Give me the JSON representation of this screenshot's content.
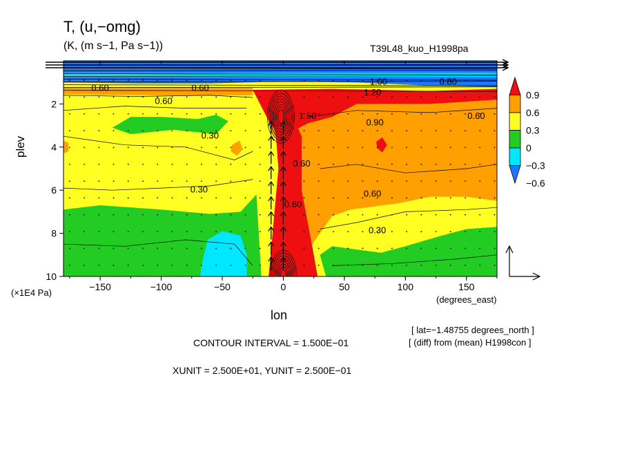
{
  "header": {
    "title": "T, (u,−omg)",
    "units": "(K, (m s−1, Pa s−1))",
    "run_id": "T39L48_kuo_H1998pa"
  },
  "footer": {
    "contour_interval": "CONTOUR INTERVAL = 1.500E−01",
    "xyunit": "XUNIT = 2.500E+01, YUNIT = 2.500E−01",
    "lat_note": "[ lat=−1.48755 degrees_north ]",
    "diff_note": "[ (diff) from (mean) H1998con ]"
  },
  "chart_data": {
    "type": "heatmap",
    "title": "T, (u,−omg)",
    "xlabel": "lon",
    "xunit_label": "(degrees_east)",
    "ylabel": "plev",
    "yunit_label": "(×1E4 Pa)",
    "xlim": [
      -180,
      175
    ],
    "ylim": [
      10,
      0
    ],
    "xticks": [
      -150,
      -100,
      -50,
      0,
      50,
      100,
      150
    ],
    "yticks": [
      2,
      4,
      6,
      8,
      10
    ],
    "colorbar": {
      "levels": [
        -0.6,
        -0.3,
        0,
        0.3,
        0.6,
        0.9
      ],
      "level_labels": [
        "−0.6",
        "−0.3",
        "0",
        "0.3",
        "0.6",
        "0.9"
      ],
      "colors": [
        "#1e78ff",
        "#00e8ff",
        "#22cc22",
        "#ffff22",
        "#ff9f00",
        "#ee1010"
      ]
    },
    "contour_labels": [
      {
        "lon": 20,
        "plev": 2.7,
        "text": "1.50"
      },
      {
        "lon": 73,
        "plev": 1.6,
        "text": "1.20"
      },
      {
        "lon": 75,
        "plev": 3.0,
        "text": "0.90"
      },
      {
        "lon": 158,
        "plev": 2.7,
        "text": "0.60"
      },
      {
        "lon": -98,
        "plev": 2.0,
        "text": "0.60"
      },
      {
        "lon": -60,
        "plev": 3.6,
        "text": "0.30"
      },
      {
        "lon": 15,
        "plev": 4.9,
        "text": "0.60"
      },
      {
        "lon": 8,
        "plev": 6.8,
        "text": "0.60"
      },
      {
        "lon": 73,
        "plev": 6.3,
        "text": "0.60"
      },
      {
        "lon": -69,
        "plev": 6.1,
        "text": "0.30"
      },
      {
        "lon": 77,
        "plev": 8.0,
        "text": "0.30"
      },
      {
        "lon": -150,
        "plev": 1.4,
        "text": "0.60"
      },
      {
        "lon": -68,
        "plev": 1.4,
        "text": "0.60"
      },
      {
        "lon": 78,
        "plev": 1.1,
        "text": "1.00"
      },
      {
        "lon": 135,
        "plev": 1.1,
        "text": "0.80"
      }
    ],
    "colorbar_label_values": [
      "0.9",
      "0.6",
      "0.3",
      "0",
      "−0.3",
      "−0.6"
    ]
  }
}
